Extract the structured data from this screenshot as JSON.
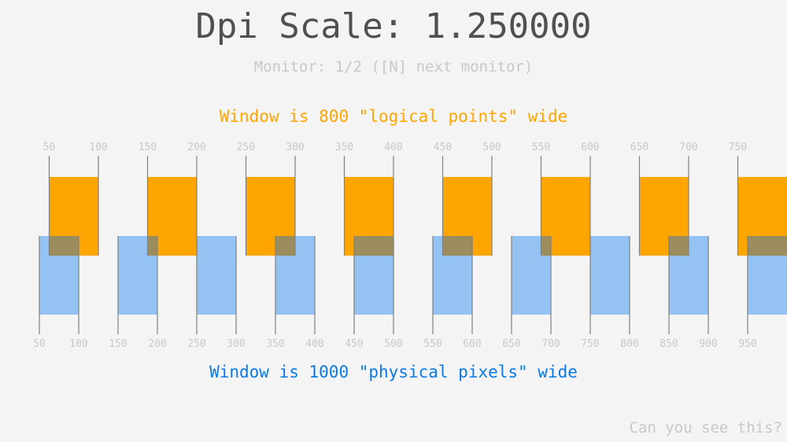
{
  "title": "Dpi Scale: 1.250000",
  "dpi_scale": 1.25,
  "monitor_info": "Monitor: 1/2 ([N] next monitor)",
  "logical_label": "Window is 800 \"logical points\" wide",
  "physical_label": "Window is 1000 \"physical pixels\" wide",
  "footer": "Can you see this?",
  "logical_ticks": [
    "50",
    "100",
    "150",
    "200",
    "250",
    "300",
    "350",
    "400",
    "450",
    "500",
    "550",
    "600",
    "650",
    "700",
    "750"
  ],
  "physical_ticks": [
    "50",
    "100",
    "150",
    "200",
    "250",
    "300",
    "350",
    "400",
    "450",
    "500",
    "550",
    "600",
    "650",
    "700",
    "750",
    "800",
    "850",
    "900",
    "950"
  ],
  "colors": {
    "logical": "#ffa500",
    "physical": "#94c3f3",
    "overlap": "#9b8d5c",
    "physical_text": "#0a7ae6",
    "lines": "#808080"
  }
}
